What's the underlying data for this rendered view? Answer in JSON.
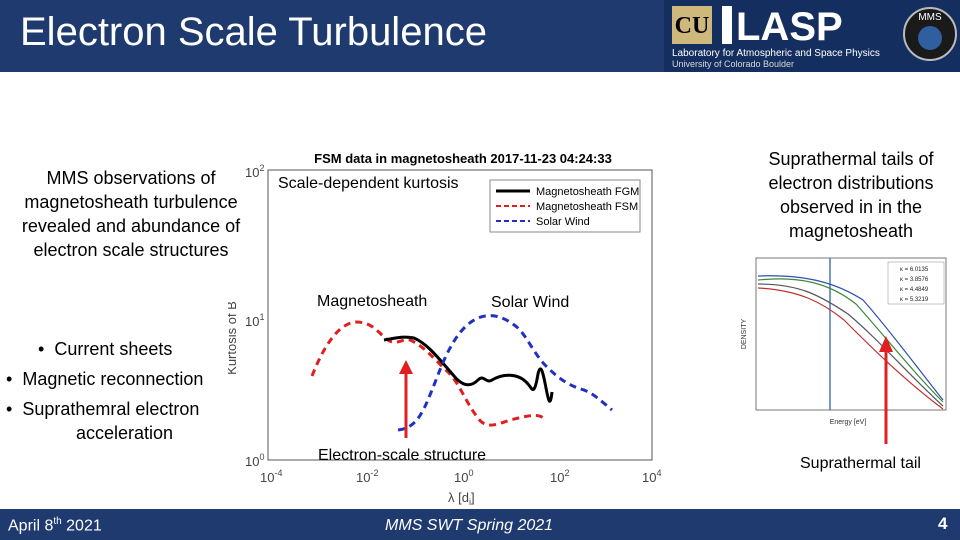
{
  "slide": {
    "title": "Electron Scale Turbulence",
    "page_number": "4"
  },
  "logos": {
    "cu_logo": "CU",
    "lasp_wordmark": "LASP",
    "lasp_subtitle": "Laboratory for Atmospheric and Space Physics",
    "lasp_university": "University of Colorado Boulder",
    "mms_badge": "MMS"
  },
  "left_panel": {
    "summary_lines": [
      "MMS observations of",
      "magnetosheath turbulence",
      "revealed and abundance of",
      "electron scale structures"
    ],
    "bullets": [
      {
        "marker": "•",
        "text": "Current sheets"
      },
      {
        "marker": "•",
        "text": "Magnetic reconnection"
      },
      {
        "marker": "•",
        "text": "Suprathemral electron"
      }
    ],
    "bullet_continuation": "acceleration"
  },
  "center_plot": {
    "title": "FSM data in magnetosheath 2017-11-23 04:24:33",
    "subtitle": "Scale-dependent kurtosis",
    "ylabel": "Kurtosis of B",
    "y_ticks": [
      {
        "base": "10",
        "exp": "2"
      },
      {
        "base": "10",
        "exp": "1"
      },
      {
        "base": "10",
        "exp": "0"
      }
    ],
    "x_ticks": [
      {
        "base": "10",
        "exp": "-4"
      },
      {
        "base": "10",
        "exp": "-2"
      },
      {
        "base": "10",
        "exp": "0"
      },
      {
        "base": "10",
        "exp": "2"
      },
      {
        "base": "10",
        "exp": "4"
      }
    ],
    "xlabel": "λ [d",
    "xlabel_sub": "i",
    "xlabel_end": "]",
    "legend": [
      "Magnetosheath FGM",
      "Magnetosheath FSM",
      "Solar Wind"
    ],
    "annotation_magnetosheath": "Magnetosheath",
    "annotation_solarwind": "Solar Wind",
    "annotation_structure": "Electron-scale structure",
    "colors": {
      "fgm": "#000000",
      "fsm": "#e02020",
      "sw": "#2030c0",
      "arrow": "#e02020"
    }
  },
  "right_panel": {
    "caption_lines": [
      "Suprathermal tails of",
      "electron distributions",
      "observed in in the",
      "magnetosheath"
    ],
    "inset_legend": [
      "κ = 6.0135",
      "κ = 3.8576",
      "κ = 4.4849",
      "κ = 5.3219"
    ],
    "inset_xlabel": "Energy [eV]",
    "inset_ylabel": "DENSITY",
    "tail_label": "Suprathermal tail"
  },
  "footer": {
    "date_prefix": "April 8",
    "date_sup": "th",
    "date_suffix": " 2021",
    "center": "MMS SWT Spring 2021"
  }
}
